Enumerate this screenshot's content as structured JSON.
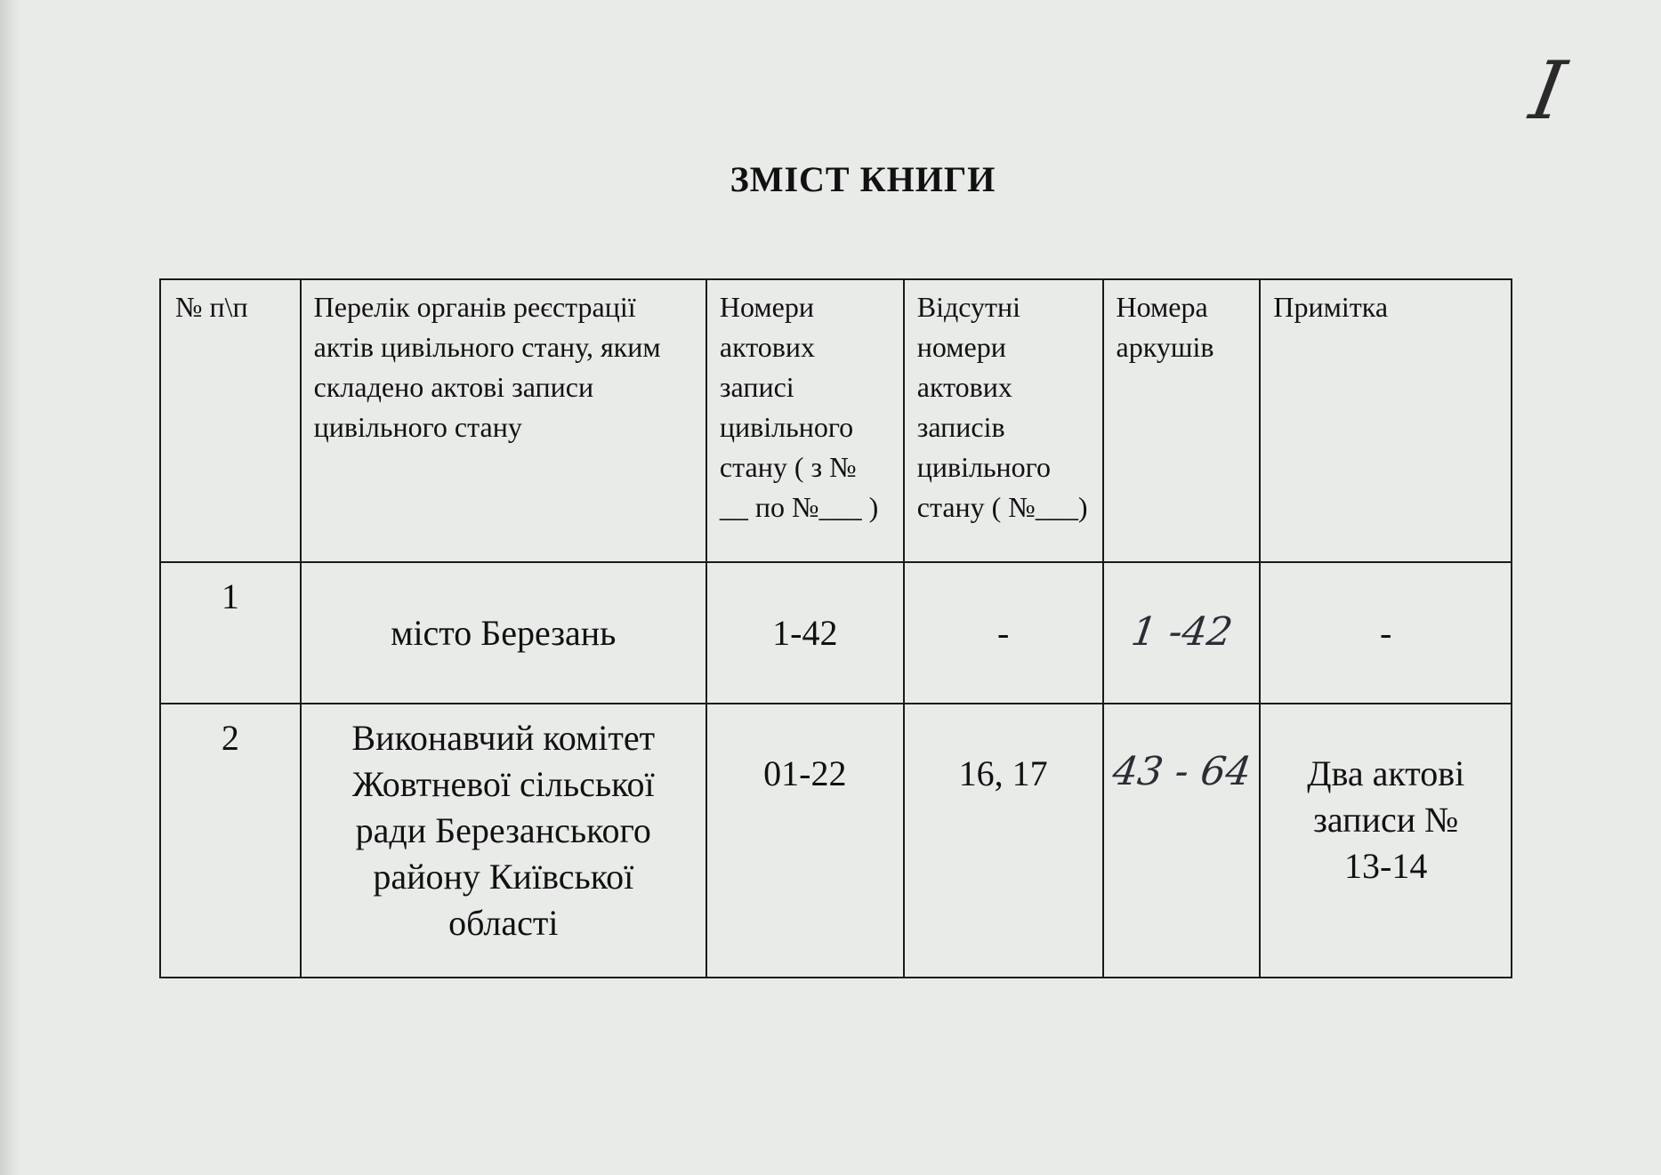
{
  "page_number_handwritten": "I",
  "title": "ЗМІСТ  КНИГИ",
  "table": {
    "headers": [
      "№ п\\п",
      "Перелік органів реєстрації актів цивільного стану, яким складено актові записи цивільного стану",
      "Номери актових записі цивільного стану ( з № __ по №___ )",
      "Відсутні номери актових записів цивільного стану ( №___)",
      "Номера аркушів",
      "Примітка"
    ],
    "rows": [
      {
        "num": "1",
        "organ": "місто Березань",
        "records": "1-42",
        "missing": "-",
        "sheets": "1 -42",
        "note": "-"
      },
      {
        "num": "2",
        "organ": "Виконавчий комітет Жовтневої сільської ради Березанського району Київської області",
        "records": "01-22",
        "missing": "16, 17",
        "sheets": "43 - 64",
        "note": "Два актові записи № 13-14"
      }
    ]
  }
}
